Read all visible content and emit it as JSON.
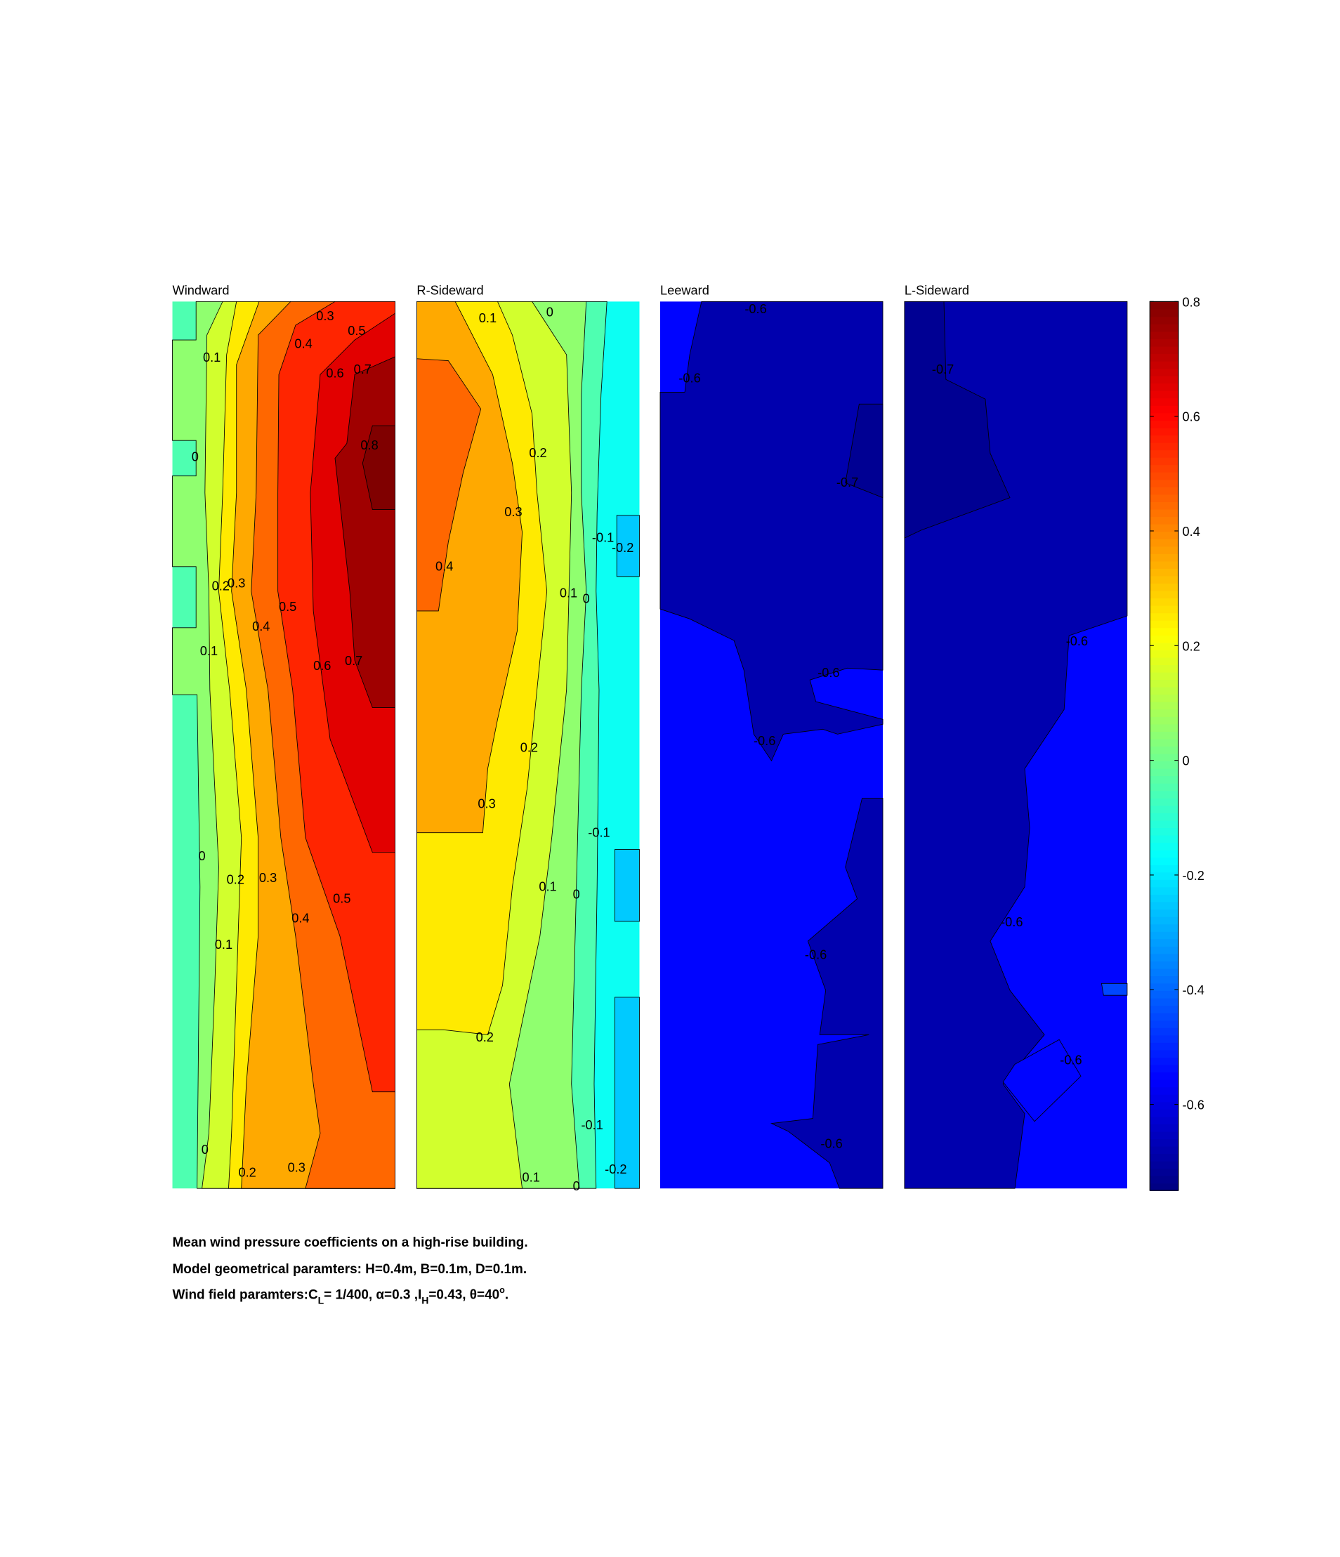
{
  "chart_data": {
    "type": "contour",
    "panels": [
      {
        "title": "Windward",
        "contour_labels": [
          0.3,
          0.5,
          0.1,
          0.4,
          0.6,
          0.7,
          0,
          0.8,
          0.2,
          0.3,
          0.4,
          0.5,
          0.1,
          0.6,
          0.7,
          0,
          0.2,
          0.3,
          0.5,
          0.4,
          0.1,
          0,
          0.2,
          0.3
        ]
      },
      {
        "title": "R-Sideward",
        "contour_labels": [
          0.1,
          0,
          0.2,
          0.3,
          0.4,
          -0.1,
          -0.2,
          0.1,
          0,
          0.2,
          0.3,
          -0.1,
          0.1,
          0,
          0.2,
          -0.1,
          0.1,
          -0.2,
          0
        ]
      },
      {
        "title": "Leeward",
        "contour_labels": [
          -0.6,
          -0.6,
          -0.7,
          -0.6,
          -0.6,
          -0.6,
          -0.6
        ]
      },
      {
        "title": "L-Sideward",
        "contour_labels": [
          -0.7,
          -0.6,
          -0.6,
          -0.6
        ]
      }
    ],
    "colorbar": {
      "ylim": [
        -0.75,
        0.8
      ],
      "yticks": [
        0.8,
        0.6,
        0.4,
        0.2,
        0,
        -0.2,
        -0.4,
        -0.6
      ]
    }
  },
  "caption": {
    "line1": "Mean wind pressure coefficients on a high-rise building.",
    "line2": "Model geometrical paramters: H=0.4m, B=0.1m, D=0.1m.",
    "line3": [
      "Wind field paramters:C",
      "L",
      "= 1/400, α=0.3 ,I",
      "H",
      "=0.43, θ=40",
      "o",
      "."
    ]
  }
}
